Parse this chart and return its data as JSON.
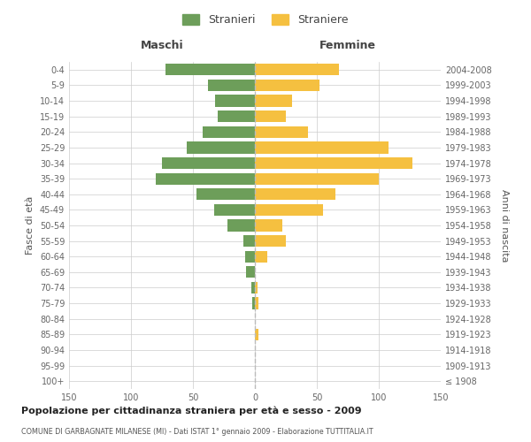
{
  "age_groups": [
    "100+",
    "95-99",
    "90-94",
    "85-89",
    "80-84",
    "75-79",
    "70-74",
    "65-69",
    "60-64",
    "55-59",
    "50-54",
    "45-49",
    "40-44",
    "35-39",
    "30-34",
    "25-29",
    "20-24",
    "15-19",
    "10-14",
    "5-9",
    "0-4"
  ],
  "birth_years": [
    "≤ 1908",
    "1909-1913",
    "1914-1918",
    "1919-1923",
    "1924-1928",
    "1929-1933",
    "1934-1938",
    "1939-1943",
    "1944-1948",
    "1949-1953",
    "1954-1958",
    "1959-1963",
    "1964-1968",
    "1969-1973",
    "1974-1978",
    "1979-1983",
    "1984-1988",
    "1989-1993",
    "1994-1998",
    "1999-2003",
    "2004-2008"
  ],
  "males": [
    0,
    0,
    0,
    0,
    0,
    2,
    3,
    7,
    8,
    9,
    22,
    33,
    47,
    80,
    75,
    55,
    42,
    30,
    32,
    38,
    72
  ],
  "females": [
    0,
    0,
    0,
    3,
    0,
    3,
    2,
    0,
    10,
    25,
    22,
    55,
    65,
    100,
    127,
    108,
    43,
    25,
    30,
    52,
    68
  ],
  "male_color": "#6d9e5a",
  "female_color": "#f5c040",
  "background_color": "#ffffff",
  "grid_color": "#cccccc",
  "title": "Popolazione per cittadinanza straniera per età e sesso - 2009",
  "subtitle": "COMUNE DI GARBAGNATE MILANESE (MI) - Dati ISTAT 1° gennaio 2009 - Elaborazione TUTTITALIA.IT",
  "xlabel_left": "Maschi",
  "xlabel_right": "Femmine",
  "ylabel_left": "Fasce di età",
  "ylabel_right": "Anni di nascita",
  "legend_male": "Stranieri",
  "legend_female": "Straniere",
  "xlim": 150
}
